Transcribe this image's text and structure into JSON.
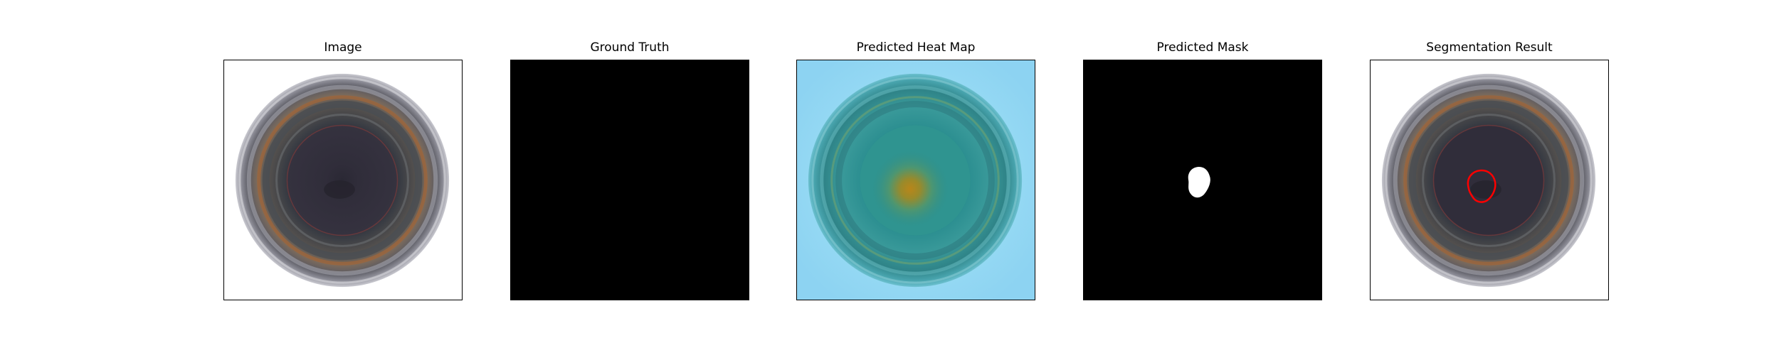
{
  "panels": [
    {
      "title": "Image",
      "kind": "original-image"
    },
    {
      "title": "Ground Truth",
      "kind": "ground-truth-mask"
    },
    {
      "title": "Predicted Heat Map",
      "kind": "heat-map-overlay"
    },
    {
      "title": "Predicted Mask",
      "kind": "binary-mask"
    },
    {
      "title": "Segmentation Result",
      "kind": "segmentation-overlay"
    }
  ],
  "colors": {
    "mask_background": "#000000",
    "mask_foreground": "#ffffff",
    "segmentation_contour": "#ff0000",
    "heat_map_background": "#8fd6f2"
  }
}
